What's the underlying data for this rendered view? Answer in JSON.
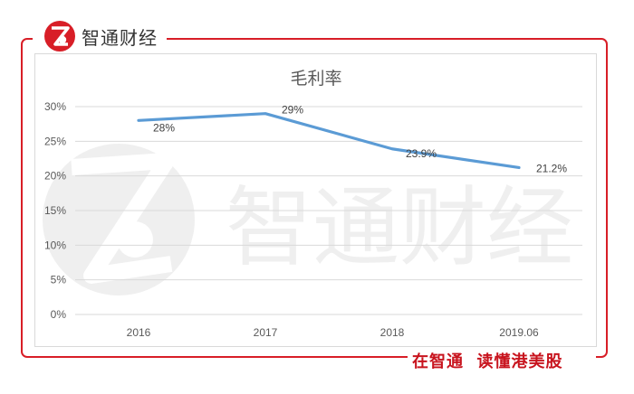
{
  "brand": {
    "name": "智通财经",
    "logo_icon": "zhitong-logo-icon",
    "accent_color": "#d81e27"
  },
  "footer": {
    "slogan": "在智通  读懂港美股"
  },
  "watermark": {
    "text": "智通财经",
    "icon": "zhitong-logo-icon"
  },
  "chart_data": {
    "type": "line",
    "title": "毛利率",
    "xlabel": "",
    "ylabel": "",
    "categories": [
      "2016",
      "2017",
      "2018",
      "2019.06"
    ],
    "series": [
      {
        "name": "毛利率",
        "values": [
          28.0,
          29.0,
          23.9,
          21.2
        ],
        "labels": [
          "28%",
          "29%",
          "23.9%",
          "21.2%"
        ],
        "color": "#5b9bd5"
      }
    ],
    "yticks": [
      "0%",
      "5%",
      "10%",
      "15%",
      "20%",
      "25%",
      "30%"
    ],
    "ylim": [
      0,
      30
    ],
    "grid": true,
    "legend": "none"
  }
}
